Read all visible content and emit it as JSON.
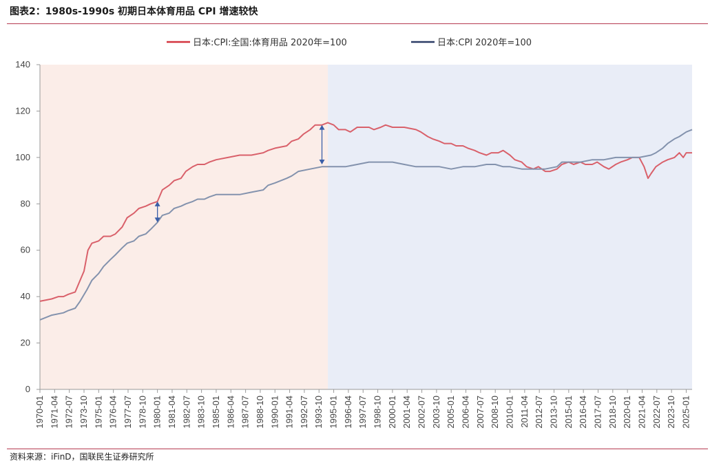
{
  "figure_title": "图表2：1980s-1990s 初期日本体育用品 CPI 增速较快",
  "source_note": "资料来源：iFinD，国联民生证券研究所",
  "colors": {
    "sports_series": "#d9606a",
    "cpi_series": "#8392ad",
    "sports_legend": "#d3343f",
    "cpi_legend": "#2b3c66",
    "shade_early": "#fbede8",
    "shade_late": "#e9edf7",
    "arrow": "#3a5ea8",
    "axis": "#999999",
    "rule": "#b5394f"
  },
  "chart_data": {
    "type": "line",
    "title": "",
    "xlabel": "",
    "ylabel": "",
    "ylim": [
      0,
      140
    ],
    "yticks": [
      0,
      20,
      40,
      60,
      80,
      100,
      120,
      140
    ],
    "x_range": [
      "1970-01",
      "2025-07"
    ],
    "x_tick_labels": [
      "1970-01",
      "1971-04",
      "1972-07",
      "1973-10",
      "1975-01",
      "1976-04",
      "1977-07",
      "1978-10",
      "1980-01",
      "1981-04",
      "1982-07",
      "1983-10",
      "1985-01",
      "1986-04",
      "1987-07",
      "1988-10",
      "1990-01",
      "1991-04",
      "1992-07",
      "1993-10",
      "1995-01",
      "1996-04",
      "1997-07",
      "1998-10",
      "2000-01",
      "2001-04",
      "2002-07",
      "2003-10",
      "2005-01",
      "2006-04",
      "2007-07",
      "2008-10",
      "2010-01",
      "2011-04",
      "2012-07",
      "2013-10",
      "2015-01",
      "2016-04",
      "2017-07",
      "2018-10",
      "2020-01",
      "2021-04",
      "2022-07",
      "2023-10",
      "2025-01"
    ],
    "legend_position": "top-center",
    "grid": false,
    "shaded_regions": [
      {
        "from": "1970-01",
        "to": "1994-07",
        "color": "#fbede8"
      },
      {
        "from": "1994-07",
        "to": "2025-07",
        "color": "#e9edf7"
      }
    ],
    "annotations": [
      {
        "type": "double-arrow",
        "x": "1980-01",
        "y_from": 72,
        "y_to": 81
      },
      {
        "type": "double-arrow",
        "x": "1994-01",
        "y_from": 97,
        "y_to": 114
      }
    ],
    "series": [
      {
        "name": "日本:CPI:全国:体育用品 2020年=100",
        "color": "#d9606a",
        "points": [
          [
            "1970-01",
            38
          ],
          [
            "1971-01",
            39
          ],
          [
            "1971-08",
            40
          ],
          [
            "1972-01",
            40
          ],
          [
            "1972-06",
            41
          ],
          [
            "1973-01",
            42
          ],
          [
            "1973-06",
            47
          ],
          [
            "1973-10",
            51
          ],
          [
            "1974-02",
            60
          ],
          [
            "1974-06",
            63
          ],
          [
            "1975-01",
            64
          ],
          [
            "1975-06",
            66
          ],
          [
            "1976-01",
            66
          ],
          [
            "1976-06",
            67
          ],
          [
            "1977-01",
            70
          ],
          [
            "1977-06",
            74
          ],
          [
            "1978-01",
            76
          ],
          [
            "1978-06",
            78
          ],
          [
            "1979-01",
            79
          ],
          [
            "1979-06",
            80
          ],
          [
            "1980-01",
            81
          ],
          [
            "1980-06",
            86
          ],
          [
            "1981-01",
            88
          ],
          [
            "1981-06",
            90
          ],
          [
            "1982-01",
            91
          ],
          [
            "1982-06",
            94
          ],
          [
            "1983-01",
            96
          ],
          [
            "1983-06",
            97
          ],
          [
            "1984-01",
            97
          ],
          [
            "1984-06",
            98
          ],
          [
            "1985-01",
            99
          ],
          [
            "1986-01",
            100
          ],
          [
            "1987-01",
            101
          ],
          [
            "1988-01",
            101
          ],
          [
            "1989-01",
            102
          ],
          [
            "1989-06",
            103
          ],
          [
            "1990-01",
            104
          ],
          [
            "1991-01",
            105
          ],
          [
            "1991-06",
            107
          ],
          [
            "1992-01",
            108
          ],
          [
            "1992-06",
            110
          ],
          [
            "1993-01",
            112
          ],
          [
            "1993-06",
            114
          ],
          [
            "1994-01",
            114
          ],
          [
            "1994-07",
            115
          ],
          [
            "1995-01",
            114
          ],
          [
            "1995-06",
            112
          ],
          [
            "1996-01",
            112
          ],
          [
            "1996-06",
            111
          ],
          [
            "1997-01",
            113
          ],
          [
            "1997-06",
            113
          ],
          [
            "1998-01",
            113
          ],
          [
            "1998-06",
            112
          ],
          [
            "1999-01",
            113
          ],
          [
            "1999-06",
            114
          ],
          [
            "2000-01",
            113
          ],
          [
            "2001-01",
            113
          ],
          [
            "2002-01",
            112
          ],
          [
            "2002-06",
            111
          ],
          [
            "2003-01",
            109
          ],
          [
            "2003-06",
            108
          ],
          [
            "2004-01",
            107
          ],
          [
            "2004-06",
            106
          ],
          [
            "2005-01",
            106
          ],
          [
            "2005-06",
            105
          ],
          [
            "2006-01",
            105
          ],
          [
            "2006-06",
            104
          ],
          [
            "2007-01",
            103
          ],
          [
            "2007-06",
            102
          ],
          [
            "2008-01",
            101
          ],
          [
            "2008-06",
            102
          ],
          [
            "2009-01",
            102
          ],
          [
            "2009-06",
            103
          ],
          [
            "2010-01",
            101
          ],
          [
            "2010-06",
            99
          ],
          [
            "2011-01",
            98
          ],
          [
            "2011-06",
            96
          ],
          [
            "2012-01",
            95
          ],
          [
            "2012-06",
            96
          ],
          [
            "2013-01",
            94
          ],
          [
            "2013-06",
            94
          ],
          [
            "2014-01",
            95
          ],
          [
            "2014-06",
            97
          ],
          [
            "2015-01",
            98
          ],
          [
            "2015-06",
            97
          ],
          [
            "2016-01",
            98
          ],
          [
            "2016-06",
            97
          ],
          [
            "2017-01",
            97
          ],
          [
            "2017-06",
            98
          ],
          [
            "2018-01",
            96
          ],
          [
            "2018-06",
            95
          ],
          [
            "2019-01",
            97
          ],
          [
            "2019-06",
            98
          ],
          [
            "2020-01",
            99
          ],
          [
            "2020-06",
            100
          ],
          [
            "2021-01",
            100
          ],
          [
            "2021-06",
            96
          ],
          [
            "2021-10",
            91
          ],
          [
            "2022-01",
            93
          ],
          [
            "2022-06",
            96
          ],
          [
            "2023-01",
            98
          ],
          [
            "2023-06",
            99
          ],
          [
            "2024-01",
            100
          ],
          [
            "2024-06",
            102
          ],
          [
            "2024-10",
            100
          ],
          [
            "2025-01",
            102
          ],
          [
            "2025-07",
            102
          ]
        ]
      },
      {
        "name": "日本:CPI 2020年=100",
        "color": "#8392ad",
        "points": [
          [
            "1970-01",
            30
          ],
          [
            "1971-01",
            32
          ],
          [
            "1972-01",
            33
          ],
          [
            "1972-06",
            34
          ],
          [
            "1973-01",
            35
          ],
          [
            "1973-06",
            38
          ],
          [
            "1974-01",
            43
          ],
          [
            "1974-06",
            47
          ],
          [
            "1975-01",
            50
          ],
          [
            "1975-06",
            53
          ],
          [
            "1976-01",
            56
          ],
          [
            "1976-06",
            58
          ],
          [
            "1977-01",
            61
          ],
          [
            "1977-06",
            63
          ],
          [
            "1978-01",
            64
          ],
          [
            "1978-06",
            66
          ],
          [
            "1979-01",
            67
          ],
          [
            "1979-06",
            69
          ],
          [
            "1980-01",
            72
          ],
          [
            "1980-06",
            75
          ],
          [
            "1981-01",
            76
          ],
          [
            "1981-06",
            78
          ],
          [
            "1982-01",
            79
          ],
          [
            "1982-06",
            80
          ],
          [
            "1983-01",
            81
          ],
          [
            "1983-06",
            82
          ],
          [
            "1984-01",
            82
          ],
          [
            "1984-06",
            83
          ],
          [
            "1985-01",
            84
          ],
          [
            "1986-01",
            84
          ],
          [
            "1987-01",
            84
          ],
          [
            "1988-01",
            85
          ],
          [
            "1989-01",
            86
          ],
          [
            "1989-06",
            88
          ],
          [
            "1990-01",
            89
          ],
          [
            "1991-01",
            91
          ],
          [
            "1991-06",
            92
          ],
          [
            "1992-01",
            94
          ],
          [
            "1993-01",
            95
          ],
          [
            "1994-01",
            96
          ],
          [
            "1995-01",
            96
          ],
          [
            "1996-01",
            96
          ],
          [
            "1997-01",
            97
          ],
          [
            "1998-01",
            98
          ],
          [
            "1999-01",
            98
          ],
          [
            "2000-01",
            98
          ],
          [
            "2001-01",
            97
          ],
          [
            "2002-01",
            96
          ],
          [
            "2003-01",
            96
          ],
          [
            "2004-01",
            96
          ],
          [
            "2005-01",
            95
          ],
          [
            "2006-01",
            96
          ],
          [
            "2007-01",
            96
          ],
          [
            "2008-01",
            97
          ],
          [
            "2008-10",
            97
          ],
          [
            "2009-06",
            96
          ],
          [
            "2010-01",
            96
          ],
          [
            "2011-01",
            95
          ],
          [
            "2012-01",
            95
          ],
          [
            "2013-01",
            95
          ],
          [
            "2014-01",
            96
          ],
          [
            "2014-06",
            98
          ],
          [
            "2015-01",
            98
          ],
          [
            "2016-01",
            98
          ],
          [
            "2017-01",
            99
          ],
          [
            "2018-01",
            99
          ],
          [
            "2019-01",
            100
          ],
          [
            "2020-01",
            100
          ],
          [
            "2021-01",
            100
          ],
          [
            "2022-01",
            101
          ],
          [
            "2022-06",
            102
          ],
          [
            "2023-01",
            104
          ],
          [
            "2023-06",
            106
          ],
          [
            "2024-01",
            108
          ],
          [
            "2024-06",
            109
          ],
          [
            "2025-01",
            111
          ],
          [
            "2025-07",
            112
          ]
        ]
      }
    ]
  }
}
